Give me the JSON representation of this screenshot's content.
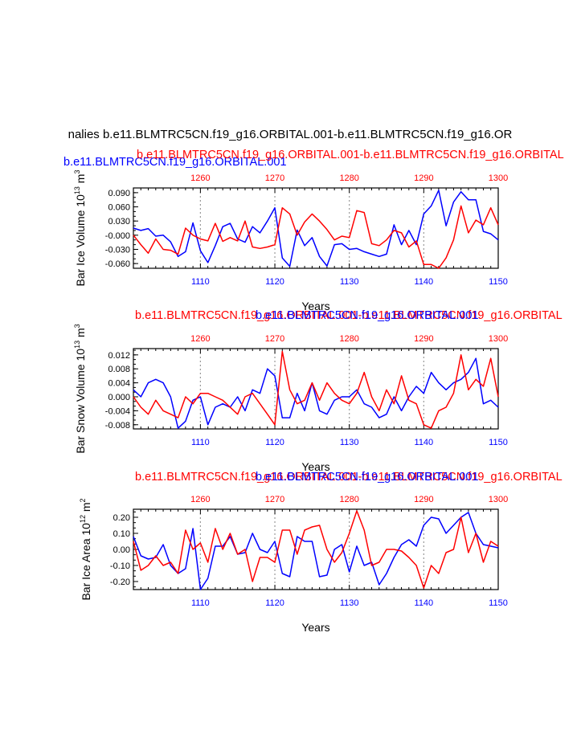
{
  "figure": {
    "main_title": "nalies b.e11.BLMTRC5CN.f19_g16.ORBITAL.001-b.e11.BLMTRC5CN.f19_g16.OR",
    "colors": {
      "blue": "#0000ff",
      "red": "#ff0000",
      "grid": "#999999",
      "axis": "#000000"
    }
  },
  "chart_data": [
    {
      "type": "line",
      "ylabel": "Bar Ice Volume 10",
      "ylabel_exp": "13",
      "ylabel_unit": " m",
      "ylabel_unit_exp": "3",
      "xlabel": "Years",
      "ylim": [
        -0.07,
        0.1
      ],
      "yticks": [
        -0.06,
        -0.03,
        0.0,
        0.03,
        0.06,
        0.09
      ],
      "ytick_labels": [
        "-0.060",
        "-0.030",
        "-0.000",
        "0.030",
        "0.060",
        "0.090"
      ],
      "xlim": [
        1101,
        1150
      ],
      "xticks": [
        1110,
        1120,
        1130,
        1140,
        1150
      ],
      "xtick_labels": [
        "1110",
        "1120",
        "1130",
        "1140",
        "1150"
      ],
      "top_xlim": [
        1251,
        1300
      ],
      "top_xticks": [
        1260,
        1270,
        1280,
        1290,
        1300
      ],
      "top_xtick_labels": [
        "1260",
        "1270",
        "1280",
        "1290",
        "1300"
      ],
      "grid_vertical": [
        1110,
        1120,
        1130,
        1140
      ],
      "series": [
        {
          "name": "b.e11.BLMTRC5CN.f19_g16.ORBITAL.001",
          "axis": "bottom",
          "color": "#0000ff",
          "x": [
            1101,
            1102,
            1103,
            1104,
            1105,
            1106,
            1107,
            1108,
            1109,
            1110,
            1111,
            1112,
            1113,
            1114,
            1115,
            1116,
            1117,
            1118,
            1119,
            1120,
            1121,
            1122,
            1123,
            1124,
            1125,
            1126,
            1127,
            1128,
            1129,
            1130,
            1131,
            1132,
            1133,
            1134,
            1135,
            1136,
            1137,
            1138,
            1139,
            1140,
            1141,
            1142,
            1143,
            1144,
            1145,
            1146,
            1147,
            1148,
            1149,
            1150
          ],
          "values": [
            0.015,
            0.01,
            0.014,
            -0.002,
            0.0,
            -0.014,
            -0.045,
            -0.035,
            0.026,
            -0.033,
            -0.058,
            -0.022,
            0.018,
            0.025,
            -0.008,
            -0.015,
            0.018,
            0.005,
            0.03,
            0.058,
            -0.048,
            -0.066,
            0.011,
            -0.022,
            -0.005,
            -0.045,
            -0.065,
            -0.02,
            -0.018,
            -0.03,
            -0.028,
            -0.035,
            -0.04,
            -0.045,
            -0.04,
            0.022,
            -0.02,
            0.01,
            -0.02,
            0.045,
            0.062,
            0.095,
            0.02,
            0.07,
            0.092,
            0.075,
            0.075,
            0.008,
            0.003,
            -0.01
          ]
        },
        {
          "name": "b.e11.BLMTRC5CN.f19_g16.ORBITAL.001-b.e11.BLMTRC5CN.f19_g16.ORBITAL",
          "axis": "top",
          "color": "#ff0000",
          "x": [
            1251,
            1252,
            1253,
            1254,
            1255,
            1256,
            1257,
            1258,
            1259,
            1260,
            1261,
            1262,
            1263,
            1264,
            1265,
            1266,
            1267,
            1268,
            1269,
            1270,
            1271,
            1272,
            1273,
            1274,
            1275,
            1276,
            1277,
            1278,
            1279,
            1280,
            1281,
            1282,
            1283,
            1284,
            1285,
            1286,
            1287,
            1288,
            1289,
            1290,
            1291,
            1292,
            1293,
            1294,
            1295,
            1296,
            1297,
            1298,
            1299,
            1300
          ],
          "values": [
            0.0,
            -0.02,
            -0.038,
            -0.008,
            -0.03,
            -0.032,
            -0.04,
            0.015,
            0.0,
            -0.008,
            -0.012,
            0.025,
            -0.013,
            -0.005,
            -0.012,
            0.03,
            -0.025,
            -0.028,
            -0.025,
            -0.02,
            0.058,
            0.045,
            0.0,
            0.028,
            0.045,
            0.03,
            0.012,
            -0.01,
            -0.002,
            -0.005,
            0.052,
            0.048,
            -0.018,
            -0.022,
            -0.01,
            0.01,
            0.005,
            -0.025,
            -0.012,
            -0.062,
            -0.062,
            -0.07,
            -0.048,
            -0.01,
            0.062,
            0.005,
            0.032,
            0.022,
            0.058,
            0.022
          ]
        }
      ]
    },
    {
      "type": "line",
      "ylabel": "Bar Snow Volume 10",
      "ylabel_exp": "13",
      "ylabel_unit": " m",
      "ylabel_unit_exp": "3",
      "xlabel": "Years",
      "ylim": [
        -0.0092,
        0.0138
      ],
      "yticks": [
        -0.008,
        -0.004,
        0.0,
        0.004,
        0.008,
        0.012
      ],
      "ytick_labels": [
        "-0.008",
        "-0.004",
        "0.000",
        "0.004",
        "0.008",
        "0.012"
      ],
      "xlim": [
        1101,
        1150
      ],
      "xticks": [
        1110,
        1120,
        1130,
        1140,
        1150
      ],
      "xtick_labels": [
        "1110",
        "1120",
        "1130",
        "1140",
        "1150"
      ],
      "top_xlim": [
        1251,
        1300
      ],
      "top_xticks": [
        1260,
        1270,
        1280,
        1290,
        1300
      ],
      "top_xtick_labels": [
        "1260",
        "1270",
        "1280",
        "1290",
        "1300"
      ],
      "grid_vertical": [
        1110,
        1120,
        1130,
        1140
      ],
      "series": [
        {
          "name": "b.e11.BLMTRC5CN.f19_g16.ORBITAL.001",
          "axis": "bottom",
          "color": "#0000ff",
          "x": [
            1101,
            1102,
            1103,
            1104,
            1105,
            1106,
            1107,
            1108,
            1109,
            1110,
            1111,
            1112,
            1113,
            1114,
            1115,
            1116,
            1117,
            1118,
            1119,
            1120,
            1121,
            1122,
            1123,
            1124,
            1125,
            1126,
            1127,
            1128,
            1129,
            1130,
            1131,
            1132,
            1133,
            1134,
            1135,
            1136,
            1137,
            1138,
            1139,
            1140,
            1141,
            1142,
            1143,
            1144,
            1145,
            1146,
            1147,
            1148,
            1149,
            1150
          ],
          "values": [
            0.002,
            0.0,
            0.004,
            0.005,
            0.004,
            0.0,
            -0.009,
            -0.007,
            -0.001,
            0.0,
            -0.008,
            -0.003,
            -0.002,
            -0.003,
            0.0,
            -0.004,
            0.002,
            0.001,
            0.008,
            0.006,
            -0.006,
            -0.006,
            0.001,
            -0.004,
            0.004,
            -0.004,
            -0.005,
            -0.001,
            0.0,
            0.0,
            0.002,
            -0.002,
            -0.003,
            -0.006,
            -0.005,
            0.0,
            -0.004,
            0.0,
            0.003,
            0.001,
            0.007,
            0.004,
            0.002,
            0.004,
            0.005,
            0.007,
            0.011,
            -0.002,
            -0.001,
            -0.003
          ]
        },
        {
          "name": "b.e11.BLMTRC5CN.f19_g16.ORBITAL.001-b.e11.BLMTRC5CN.f19_g16.ORBITAL",
          "axis": "top",
          "color": "#ff0000",
          "x": [
            1251,
            1252,
            1253,
            1254,
            1255,
            1256,
            1257,
            1258,
            1259,
            1260,
            1261,
            1262,
            1263,
            1264,
            1265,
            1266,
            1267,
            1268,
            1269,
            1270,
            1271,
            1272,
            1273,
            1274,
            1275,
            1276,
            1277,
            1278,
            1279,
            1280,
            1281,
            1282,
            1283,
            1284,
            1285,
            1286,
            1287,
            1288,
            1289,
            1290,
            1291,
            1292,
            1293,
            1294,
            1295,
            1296,
            1297,
            1298,
            1299,
            1300
          ],
          "values": [
            0.0,
            -0.003,
            -0.005,
            -0.001,
            -0.004,
            -0.005,
            -0.006,
            0.0,
            -0.002,
            0.001,
            0.001,
            0.0,
            -0.001,
            -0.003,
            -0.005,
            0.0,
            0.001,
            -0.002,
            -0.005,
            -0.008,
            0.013,
            0.002,
            -0.002,
            -0.001,
            0.004,
            -0.001,
            0.004,
            0.001,
            -0.001,
            -0.002,
            0.001,
            0.007,
            0.0,
            -0.004,
            0.002,
            -0.002,
            0.006,
            -0.001,
            -0.002,
            -0.008,
            -0.009,
            -0.004,
            -0.003,
            0.001,
            0.012,
            0.002,
            0.005,
            0.003,
            0.011,
            0.0
          ]
        }
      ]
    },
    {
      "type": "line",
      "ylabel": "Bar Ice Area 10",
      "ylabel_exp": "12",
      "ylabel_unit": " m",
      "ylabel_unit_exp": "2",
      "xlabel": "Years",
      "ylim": [
        -0.25,
        0.25
      ],
      "yticks": [
        -0.2,
        -0.1,
        0.0,
        0.1,
        0.2
      ],
      "ytick_labels": [
        "-0.20",
        "-0.10",
        "0.00",
        "0.10",
        "0.20"
      ],
      "xlim": [
        1101,
        1150
      ],
      "xticks": [
        1110,
        1120,
        1130,
        1140,
        1150
      ],
      "xtick_labels": [
        "1110",
        "1120",
        "1130",
        "1140",
        "1150"
      ],
      "top_xlim": [
        1251,
        1300
      ],
      "top_xticks": [
        1260,
        1270,
        1280,
        1290,
        1300
      ],
      "top_xtick_labels": [
        "1260",
        "1270",
        "1280",
        "1290",
        "1300"
      ],
      "grid_vertical": [
        1110,
        1120,
        1130,
        1140
      ],
      "series": [
        {
          "name": "b.e11.BLMTRC5CN.f19_g16.ORBITAL.001",
          "axis": "bottom",
          "color": "#0000ff",
          "x": [
            1101,
            1102,
            1103,
            1104,
            1105,
            1106,
            1107,
            1108,
            1109,
            1110,
            1111,
            1112,
            1113,
            1114,
            1115,
            1116,
            1117,
            1118,
            1119,
            1120,
            1121,
            1122,
            1123,
            1124,
            1125,
            1126,
            1127,
            1128,
            1129,
            1130,
            1131,
            1132,
            1133,
            1134,
            1135,
            1136,
            1137,
            1138,
            1139,
            1140,
            1141,
            1142,
            1143,
            1144,
            1145,
            1146,
            1147,
            1148,
            1149,
            1150
          ],
          "values": [
            0.08,
            -0.04,
            -0.06,
            -0.05,
            0.03,
            -0.1,
            -0.15,
            -0.12,
            0.13,
            -0.25,
            -0.18,
            0.02,
            0.02,
            0.08,
            -0.03,
            -0.02,
            0.1,
            0.0,
            -0.02,
            0.05,
            -0.15,
            -0.17,
            0.08,
            0.05,
            0.05,
            -0.17,
            -0.16,
            0.0,
            0.03,
            -0.14,
            0.02,
            -0.1,
            -0.08,
            -0.22,
            -0.15,
            -0.05,
            0.03,
            0.06,
            0.02,
            0.15,
            0.2,
            0.19,
            0.1,
            0.15,
            0.2,
            0.23,
            0.1,
            0.03,
            0.02,
            0.01
          ]
        },
        {
          "name": "b.e11.BLMTRC5CN.f19_g16.ORBITAL.001-b.e11.BLMTRC5CN.f19_g16.ORBITAL",
          "axis": "top",
          "color": "#ff0000",
          "x": [
            1251,
            1252,
            1253,
            1254,
            1255,
            1256,
            1257,
            1258,
            1259,
            1260,
            1261,
            1262,
            1263,
            1264,
            1265,
            1266,
            1267,
            1268,
            1269,
            1270,
            1271,
            1272,
            1273,
            1274,
            1275,
            1276,
            1277,
            1278,
            1279,
            1280,
            1281,
            1282,
            1283,
            1284,
            1285,
            1286,
            1287,
            1288,
            1289,
            1290,
            1291,
            1292,
            1293,
            1294,
            1295,
            1296,
            1297,
            1298,
            1299,
            1300
          ],
          "values": [
            0.05,
            -0.13,
            -0.1,
            -0.04,
            -0.1,
            -0.08,
            -0.15,
            0.12,
            0.0,
            0.04,
            -0.08,
            0.13,
            0.0,
            0.1,
            -0.03,
            0.0,
            -0.2,
            -0.05,
            -0.05,
            -0.08,
            0.12,
            0.12,
            -0.03,
            0.12,
            0.14,
            0.15,
            0.0,
            -0.08,
            -0.02,
            0.1,
            0.24,
            0.12,
            -0.1,
            -0.08,
            0.0,
            0.0,
            -0.01,
            -0.05,
            -0.1,
            -0.24,
            -0.1,
            -0.15,
            -0.02,
            0.0,
            0.2,
            -0.02,
            0.1,
            -0.08,
            0.05,
            0.02
          ]
        }
      ]
    }
  ]
}
